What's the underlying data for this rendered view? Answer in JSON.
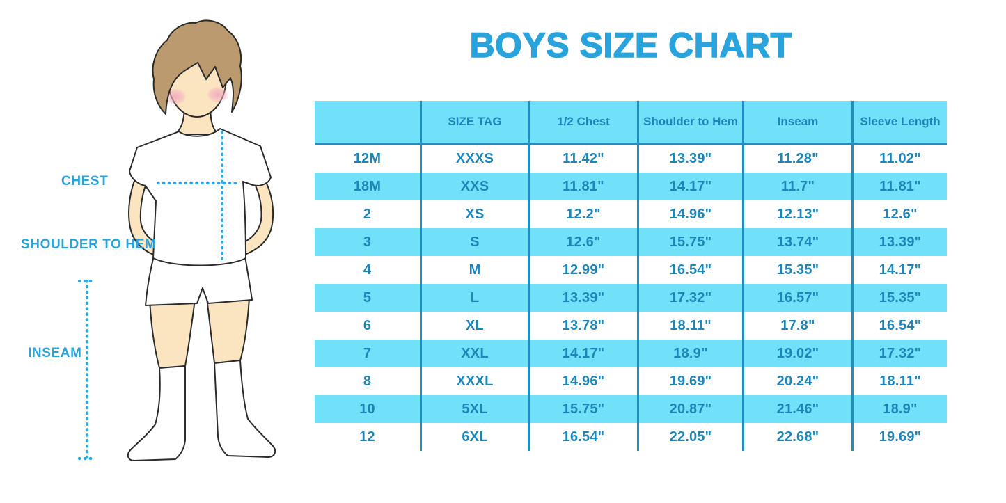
{
  "title": "BOYS SIZE CHART",
  "colors": {
    "accent": "#29a3dc",
    "table-bg": "#71e1f9",
    "table-divider": "#1f8fc2",
    "table-text": "#1d86b8",
    "dotted": "#29abe2",
    "skin": "#fbe5c0",
    "hair": "#bc9a6f",
    "cheek": "#f2a9bf",
    "outline": "#2b2b2b"
  },
  "figure": {
    "labels": {
      "chest": "CHEST",
      "shoulder_to_hem": "SHOULDER TO HEM",
      "inseam": "INSEAM"
    }
  },
  "chart_data": {
    "type": "table",
    "title": "BOYS SIZE CHART",
    "columns": [
      "",
      "SIZE TAG",
      "1/2 Chest",
      "Shoulder to Hem",
      "Inseam",
      "Sleeve Length"
    ],
    "rows": [
      [
        "12M",
        "XXXS",
        "11.42\"",
        "13.39\"",
        "11.28\"",
        "11.02\""
      ],
      [
        "18M",
        "XXS",
        "11.81\"",
        "14.17\"",
        "11.7\"",
        "11.81\""
      ],
      [
        "2",
        "XS",
        "12.2\"",
        "14.96\"",
        "12.13\"",
        "12.6\""
      ],
      [
        "3",
        "S",
        "12.6\"",
        "15.75\"",
        "13.74\"",
        "13.39\""
      ],
      [
        "4",
        "M",
        "12.99\"",
        "16.54\"",
        "15.35\"",
        "14.17\""
      ],
      [
        "5",
        "L",
        "13.39\"",
        "17.32\"",
        "16.57\"",
        "15.35\""
      ],
      [
        "6",
        "XL",
        "13.78\"",
        "18.11\"",
        "17.8\"",
        "16.54\""
      ],
      [
        "7",
        "XXL",
        "14.17\"",
        "18.9\"",
        "19.02\"",
        "17.32\""
      ],
      [
        "8",
        "XXXL",
        "14.96\"",
        "19.69\"",
        "20.24\"",
        "18.11\""
      ],
      [
        "10",
        "5XL",
        "15.75\"",
        "20.87\"",
        "21.46\"",
        "18.9\""
      ],
      [
        "12",
        "6XL",
        "16.54\"",
        "22.05\"",
        "22.68\"",
        "19.69\""
      ]
    ],
    "row_striping": "alternating white / light-cyan, starting white"
  }
}
